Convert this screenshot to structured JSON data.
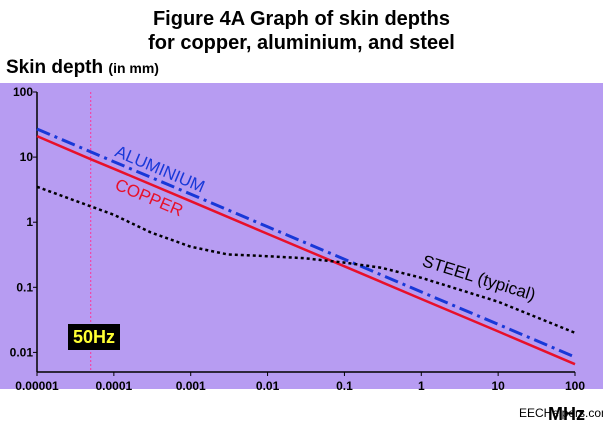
{
  "figure": {
    "title_line1": "Figure 4A   Graph of skin depths",
    "title_line2": "for copper, aluminium, and steel",
    "ylabel": "Skin depth",
    "ylabel_unit": "(in mm)",
    "xlabel_unit": "MHz",
    "marker_label": "50Hz",
    "watermark": "EECHelpers.com"
  },
  "colors": {
    "plot_background": "#b79cf2",
    "copper": "#e8102a",
    "aluminium": "#1838d8",
    "steel": "#000000",
    "marker_line": "#ff3399",
    "marker_badge_bg": "#000000",
    "marker_badge_text": "#ffff33"
  },
  "chart_data": {
    "type": "line",
    "x_scale": "log",
    "y_scale": "log",
    "xlim": [
      1e-05,
      100
    ],
    "ylim": [
      0.005,
      100
    ],
    "x_ticks": [
      "0.00001",
      "0.0001",
      "0.001",
      "0.01",
      "0.1",
      "1",
      "10",
      "100"
    ],
    "y_ticks": [
      "100",
      "10",
      "1",
      "0.1",
      "0.01"
    ],
    "grid": false,
    "vertical_marker": {
      "x": 5e-05,
      "label": "50Hz"
    },
    "series": [
      {
        "name": "COPPER",
        "color": "#e8102a",
        "style": "solid",
        "x": [
          1e-05,
          5e-05,
          0.0001,
          0.001,
          0.01,
          0.1,
          1,
          10,
          100
        ],
        "y": [
          21,
          9.3,
          6.6,
          2.1,
          0.66,
          0.21,
          0.066,
          0.021,
          0.0066
        ]
      },
      {
        "name": "ALUMINIUM",
        "color": "#1838d8",
        "style": "dashdot",
        "x": [
          1e-05,
          0.0001,
          0.001,
          0.01,
          0.1,
          1,
          10,
          100
        ],
        "y": [
          27,
          8.5,
          2.7,
          0.85,
          0.27,
          0.085,
          0.027,
          0.0085
        ]
      },
      {
        "name": "STEEL (typical)",
        "color": "#000000",
        "style": "dotted",
        "x": [
          1e-05,
          0.0001,
          0.0003,
          0.001,
          0.003,
          0.01,
          0.03,
          0.1,
          0.3,
          1,
          10,
          100
        ],
        "y": [
          3.5,
          1.3,
          0.7,
          0.42,
          0.32,
          0.3,
          0.28,
          0.24,
          0.2,
          0.14,
          0.06,
          0.02
        ]
      }
    ]
  }
}
